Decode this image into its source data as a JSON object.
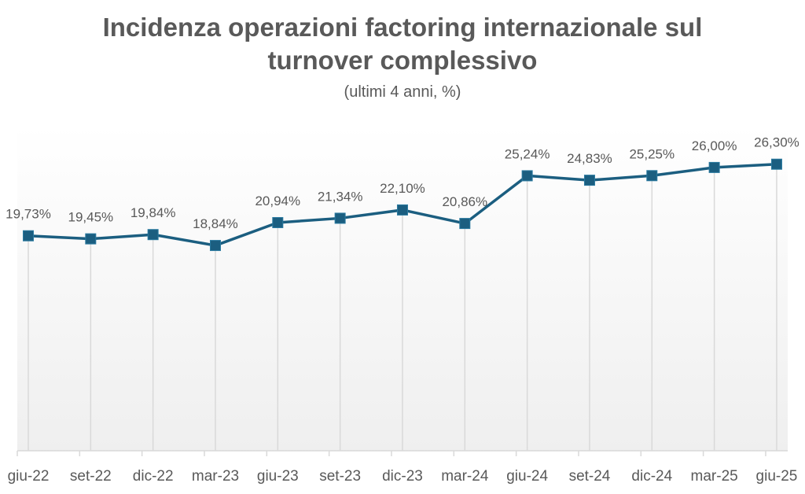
{
  "chart_data": {
    "type": "line",
    "title_line1": "Incidenza operazioni factoring internazionale sul",
    "title_line2": "turnover complessivo",
    "subtitle": "(ultimi 4 anni, %)",
    "xlabel": "",
    "ylabel": "",
    "ylim": [
      0,
      30
    ],
    "grid": false,
    "categories": [
      "giu-22",
      "set-22",
      "dic-22",
      "mar-23",
      "giu-23",
      "set-23",
      "dic-23",
      "mar-24",
      "giu-24",
      "set-24",
      "dic-24",
      "mar-25",
      "giu-25"
    ],
    "series": [
      {
        "name": "Incidenza",
        "values": [
          19.73,
          19.45,
          19.84,
          18.84,
          20.94,
          21.34,
          22.1,
          20.86,
          25.24,
          24.83,
          25.25,
          26.0,
          26.3
        ],
        "labels": [
          "19,73%",
          "19,45%",
          "19,84%",
          "18,84%",
          "20,94%",
          "21,34%",
          "22,10%",
          "20,86%",
          "25,24%",
          "24,83%",
          "25,25%",
          "26,00%",
          "26,30%"
        ],
        "color": "#1b5e80"
      }
    ]
  }
}
